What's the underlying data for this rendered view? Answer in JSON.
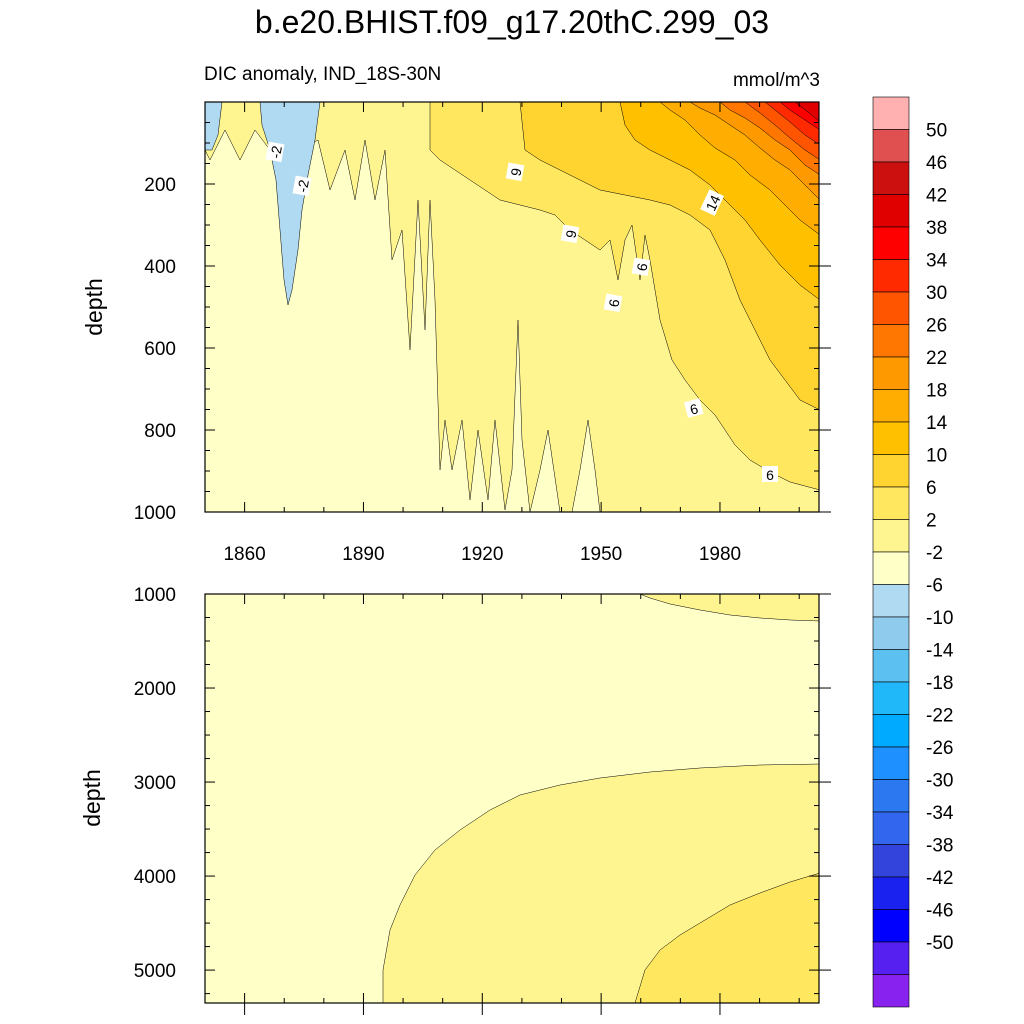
{
  "title": "b.e20.BHIST.f09_g17.20thC.299_03",
  "chart_data": {
    "type": "contour",
    "variable": "DIC anomaly",
    "subtitle": "DIC anomaly, IND_18S-30N",
    "units": "mmol/m^3",
    "x_axis": {
      "label": "",
      "range": [
        1850,
        2005
      ],
      "ticks": [
        1860,
        1890,
        1920,
        1950,
        1980
      ],
      "tick_labels": [
        "1860",
        "1890",
        "1920",
        "1950",
        "1980"
      ]
    },
    "panels": [
      {
        "name": "upper",
        "ylabel": "depth",
        "ylim": [
          0,
          1000
        ],
        "y_ticks": [
          200,
          400,
          600,
          800,
          1000
        ],
        "y_tick_labels": [
          "200",
          "400",
          "600",
          "800",
          "1000"
        ],
        "contour_labels": [
          "-2",
          "-2",
          "9",
          "9",
          "6",
          "6",
          "14",
          "6",
          "6"
        ]
      },
      {
        "name": "lower",
        "ylabel": "depth",
        "ylim": [
          1000,
          5350
        ],
        "y_ticks": [
          1000,
          2000,
          3000,
          4000,
          5000
        ],
        "y_tick_labels": [
          "1000",
          "2000",
          "3000",
          "4000",
          "5000"
        ]
      }
    ],
    "colorbar": {
      "labels": [
        "50",
        "46",
        "42",
        "38",
        "34",
        "30",
        "26",
        "22",
        "18",
        "14",
        "10",
        "6",
        "2",
        "-2",
        "-6",
        "-10",
        "-14",
        "-18",
        "-22",
        "-26",
        "-30",
        "-34",
        "-38",
        "-42",
        "-46",
        "-50"
      ],
      "colors": [
        "#ffb0b0",
        "#e05050",
        "#cc1010",
        "#e00000",
        "#ff0000",
        "#ff2a00",
        "#ff5500",
        "#ff7700",
        "#ff9900",
        "#ffad00",
        "#ffc000",
        "#ffd430",
        "#ffe860",
        "#fff590",
        "#ffffc8",
        "#b0daf2",
        "#8fcbec",
        "#5cc0f0",
        "#20b8f8",
        "#00aaff",
        "#1e90ff",
        "#2b78f0",
        "#3366ee",
        "#3344dd",
        "#1a22f0",
        "#0000ff",
        "#5520f0",
        "#8822ee"
      ]
    }
  }
}
